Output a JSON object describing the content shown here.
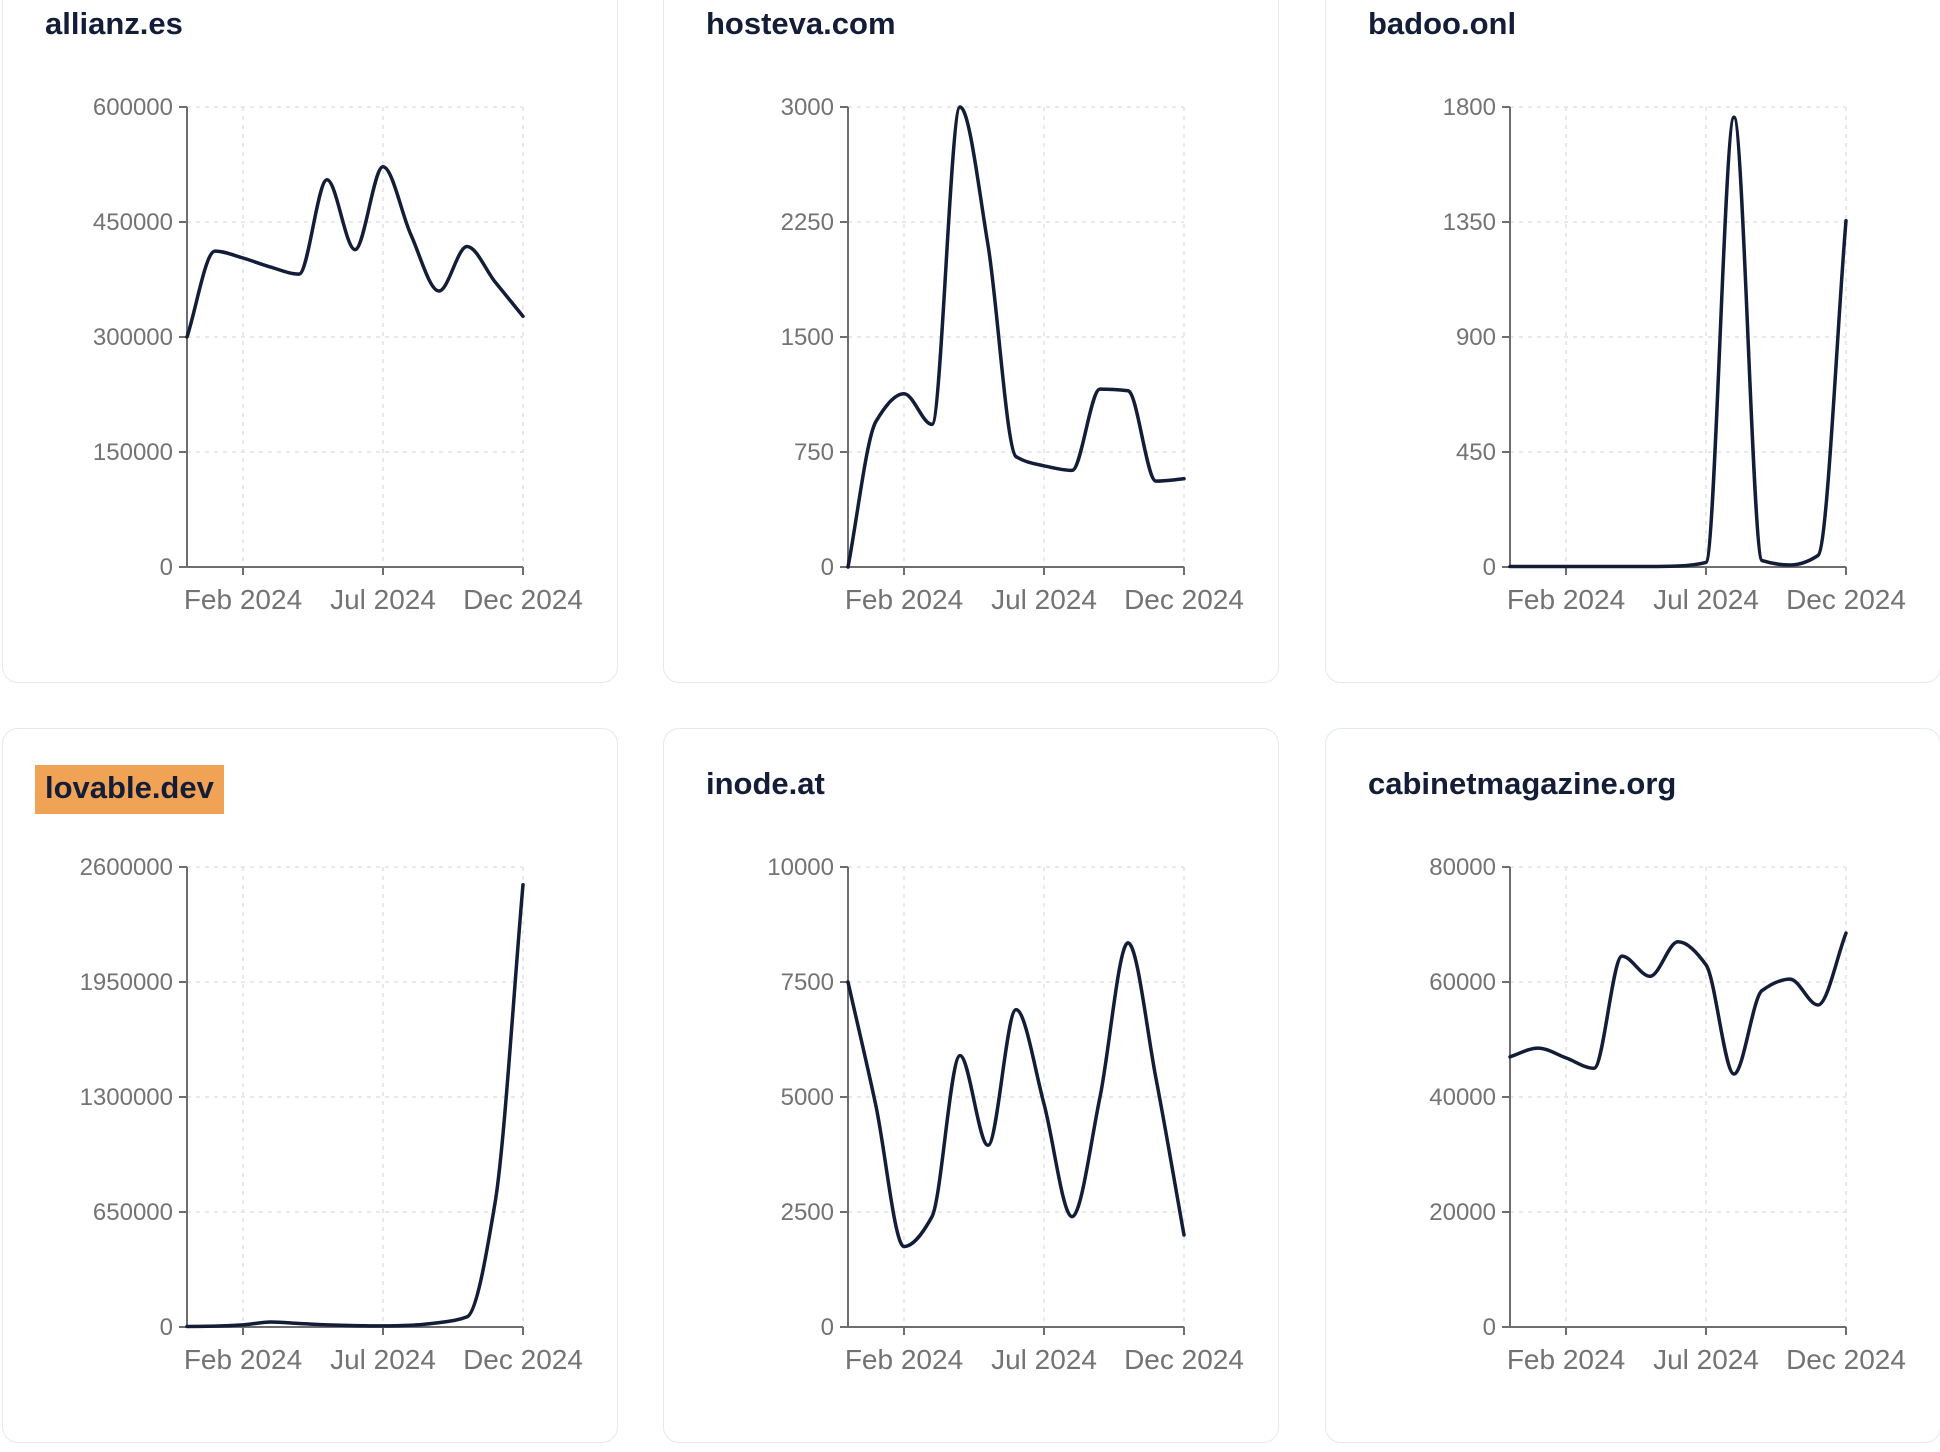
{
  "colors": {
    "series_line": "#141d38",
    "title_text": "#141d38",
    "axis": "#6e6e6e",
    "tick_label": "#737373",
    "gridline": "#e0e2e7",
    "card_border": "#e4e9f1",
    "card_background": "#ffffff",
    "highlight_background": "#f0a355"
  },
  "x_axis": {
    "tick_labels": [
      "Feb 2024",
      "Jul 2024",
      "Dec 2024"
    ],
    "tick_month_indices": [
      2,
      7,
      12
    ]
  },
  "chart_data": [
    {
      "type": "line",
      "title": "allianz.es",
      "title_highlighted": false,
      "x": [
        "2023-12",
        "2024-01",
        "2024-02",
        "2024-03",
        "2024-04",
        "2024-05",
        "2024-06",
        "2024-07",
        "2024-08",
        "2024-09",
        "2024-10",
        "2024-11",
        "2024-12"
      ],
      "x_tick_labels": [
        "Feb 2024",
        "Jul 2024",
        "Dec 2024"
      ],
      "values": [
        300000,
        412000,
        403000,
        391000,
        382000,
        505000,
        414000,
        522000,
        433000,
        360000,
        418000,
        372000,
        327000
      ],
      "ylim": [
        0,
        600000
      ],
      "y_ticks": [
        0,
        150000,
        300000,
        450000,
        600000
      ],
      "xlabel": "",
      "ylabel": "",
      "grid": "dashed",
      "legend": "none"
    },
    {
      "type": "line",
      "title": "hosteva.com",
      "title_highlighted": false,
      "x": [
        "2023-12",
        "2024-01",
        "2024-02",
        "2024-03",
        "2024-04",
        "2024-05",
        "2024-06",
        "2024-07",
        "2024-08",
        "2024-09",
        "2024-10",
        "2024-11",
        "2024-12"
      ],
      "x_tick_labels": [
        "Feb 2024",
        "Jul 2024",
        "Dec 2024"
      ],
      "values": [
        0,
        950,
        1130,
        930,
        3000,
        2100,
        720,
        660,
        630,
        1160,
        1150,
        560,
        575
      ],
      "ylim": [
        0,
        3000
      ],
      "y_ticks": [
        0,
        750,
        1500,
        2250,
        3000
      ],
      "xlabel": "",
      "ylabel": "",
      "grid": "dashed",
      "legend": "none"
    },
    {
      "type": "line",
      "title": "badoo.onl",
      "title_highlighted": false,
      "x": [
        "2023-12",
        "2024-01",
        "2024-02",
        "2024-03",
        "2024-04",
        "2024-05",
        "2024-06",
        "2024-07",
        "2024-08",
        "2024-09",
        "2024-10",
        "2024-11",
        "2024-12"
      ],
      "x_tick_labels": [
        "Feb 2024",
        "Jul 2024",
        "Dec 2024"
      ],
      "values": [
        2,
        2,
        2,
        2,
        2,
        2,
        4,
        18,
        1760,
        25,
        8,
        45,
        1355
      ],
      "ylim": [
        0,
        1800
      ],
      "y_ticks": [
        0,
        450,
        900,
        1350,
        1800
      ],
      "xlabel": "",
      "ylabel": "",
      "grid": "dashed",
      "legend": "none"
    },
    {
      "type": "line",
      "title": "lovable.dev",
      "title_highlighted": true,
      "x": [
        "2023-12",
        "2024-01",
        "2024-02",
        "2024-03",
        "2024-04",
        "2024-05",
        "2024-06",
        "2024-07",
        "2024-08",
        "2024-09",
        "2024-10",
        "2024-11",
        "2024-12"
      ],
      "x_tick_labels": [
        "Feb 2024",
        "Jul 2024",
        "Dec 2024"
      ],
      "values": [
        3000,
        5000,
        12000,
        28000,
        20000,
        12000,
        8000,
        6000,
        10000,
        25000,
        57000,
        700000,
        2500000
      ],
      "ylim": [
        0,
        2600000
      ],
      "y_ticks": [
        0,
        650000,
        1300000,
        1950000,
        2600000
      ],
      "xlabel": "",
      "ylabel": "",
      "grid": "dashed",
      "legend": "none"
    },
    {
      "type": "line",
      "title": "inode.at",
      "title_highlighted": false,
      "x": [
        "2023-12",
        "2024-01",
        "2024-02",
        "2024-03",
        "2024-04",
        "2024-05",
        "2024-06",
        "2024-07",
        "2024-08",
        "2024-09",
        "2024-10",
        "2024-11",
        "2024-12"
      ],
      "x_tick_labels": [
        "Feb 2024",
        "Jul 2024",
        "Dec 2024"
      ],
      "values": [
        7500,
        4800,
        1750,
        2400,
        5900,
        3950,
        6900,
        4850,
        2400,
        5000,
        8350,
        5400,
        2000
      ],
      "ylim": [
        0,
        10000
      ],
      "y_ticks": [
        0,
        2500,
        5000,
        7500,
        10000
      ],
      "xlabel": "",
      "ylabel": "",
      "grid": "dashed",
      "legend": "none"
    },
    {
      "type": "line",
      "title": "cabinetmagazine.org",
      "title_highlighted": false,
      "x": [
        "2023-12",
        "2024-01",
        "2024-02",
        "2024-03",
        "2024-04",
        "2024-05",
        "2024-06",
        "2024-07",
        "2024-08",
        "2024-09",
        "2024-10",
        "2024-11",
        "2024-12"
      ],
      "x_tick_labels": [
        "Feb 2024",
        "Jul 2024",
        "Dec 2024"
      ],
      "values": [
        47000,
        48500,
        46800,
        45000,
        64500,
        61000,
        67000,
        63000,
        44000,
        58500,
        60500,
        56000,
        68500
      ],
      "ylim": [
        0,
        80000
      ],
      "y_ticks": [
        0,
        20000,
        40000,
        60000,
        80000
      ],
      "xlabel": "",
      "ylabel": "",
      "grid": "dashed",
      "legend": "none"
    }
  ]
}
